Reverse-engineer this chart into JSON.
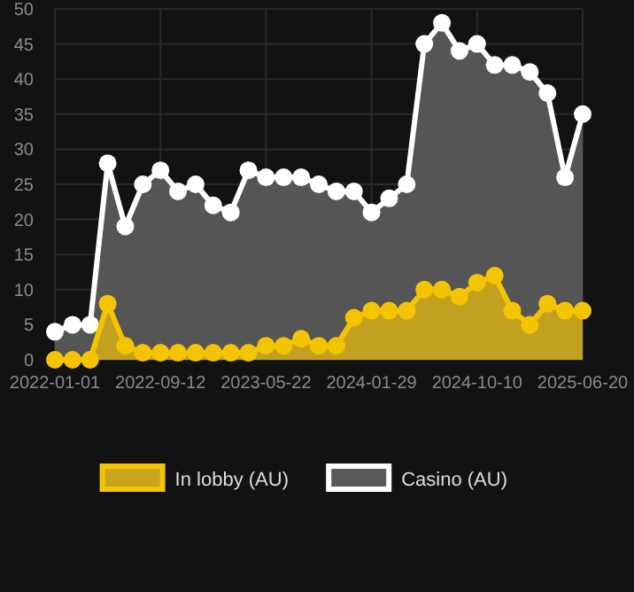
{
  "chart_data": {
    "type": "area",
    "categories": [
      "2022-01-01",
      null,
      null,
      null,
      null,
      null,
      "2022-09-12",
      null,
      null,
      null,
      null,
      null,
      "2023-05-22",
      null,
      null,
      null,
      null,
      null,
      "2024-01-29",
      null,
      null,
      null,
      null,
      null,
      "2024-10-10",
      null,
      null,
      null,
      null,
      null,
      "2025-06-20"
    ],
    "series": [
      {
        "name": "In lobby (AU)",
        "color": "#f5c400",
        "values": [
          0,
          0,
          0,
          8,
          2,
          1,
          1,
          1,
          1,
          1,
          1,
          1,
          2,
          2,
          3,
          2,
          2,
          6,
          7,
          7,
          7,
          10,
          10,
          9,
          11,
          12,
          7,
          5,
          8,
          7,
          7
        ]
      },
      {
        "name": "Casino (AU)",
        "color": "#ffffff",
        "values": [
          4,
          5,
          5,
          28,
          19,
          25,
          27,
          24,
          25,
          22,
          21,
          27,
          26,
          26,
          26,
          25,
          24,
          24,
          21,
          23,
          25,
          45,
          48,
          44,
          45,
          42,
          42,
          41,
          38,
          26,
          35
        ]
      }
    ],
    "ylim": [
      0,
      50
    ],
    "yticks": [
      0,
      5,
      10,
      15,
      20,
      25,
      30,
      35,
      40,
      45,
      50
    ],
    "grid": true,
    "legend": "bottom",
    "marker": "circle"
  }
}
